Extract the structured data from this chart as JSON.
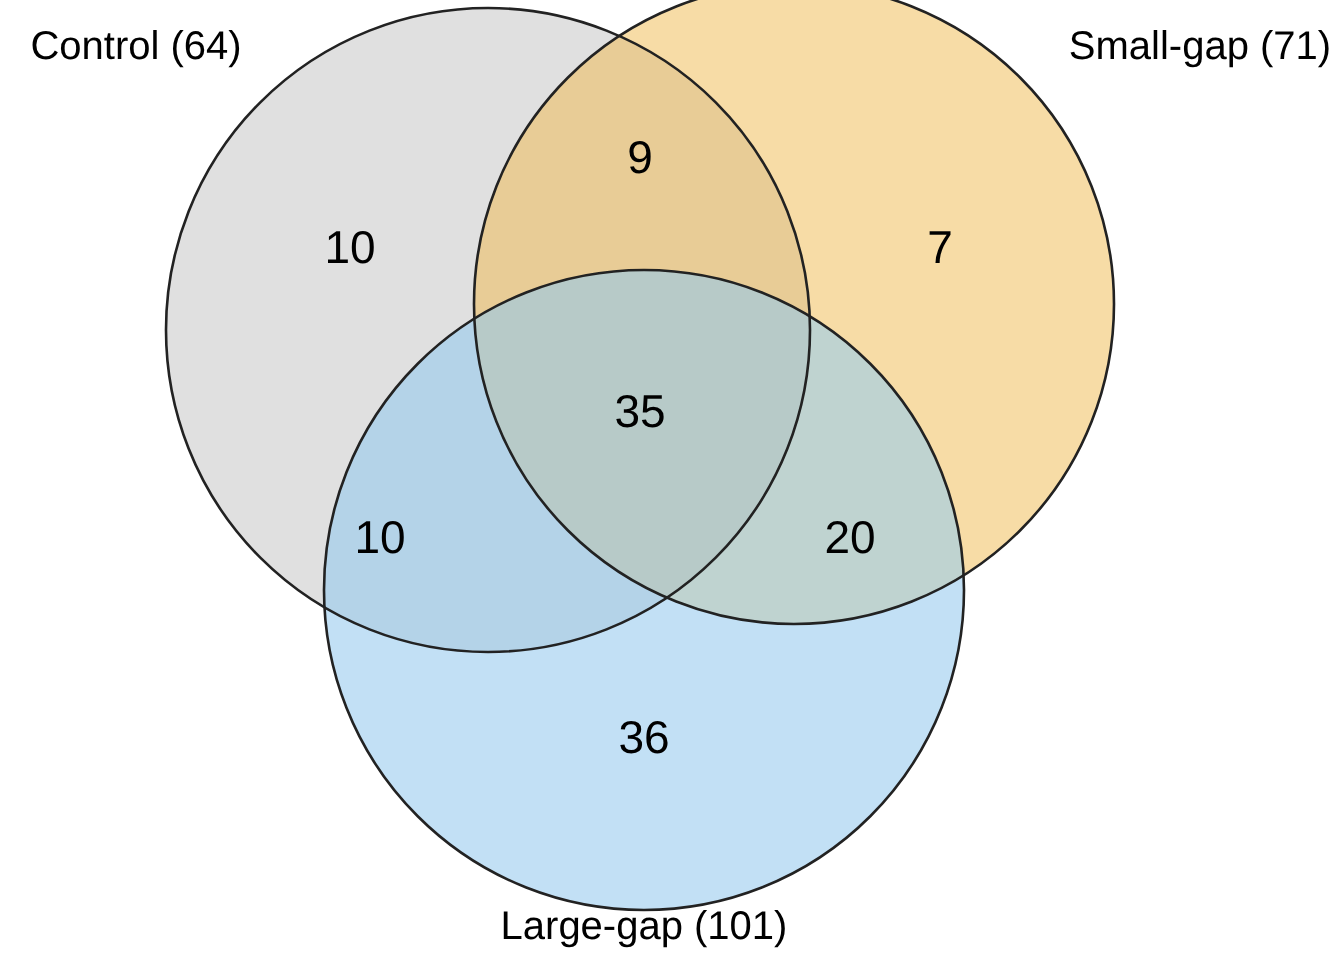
{
  "chart_data": {
    "type": "other",
    "categories": [
      null,
      null,
      null,
      null,
      null,
      null,
      null
    ],
    "values": [
      9,
      10,
      7,
      35,
      10,
      20,
      36
    ],
    "colors": [
      "#e8cc96",
      "#e0e0e0",
      "#f7dca6",
      "#b7cac8",
      "#b4d3e8",
      "#bfd3d0",
      "#c2e0f5"
    ],
    "data_labels": true,
    "annotations": [
      "Control (64)",
      "Small-gap (71)",
      "Large-gap (101)"
    ]
  }
}
